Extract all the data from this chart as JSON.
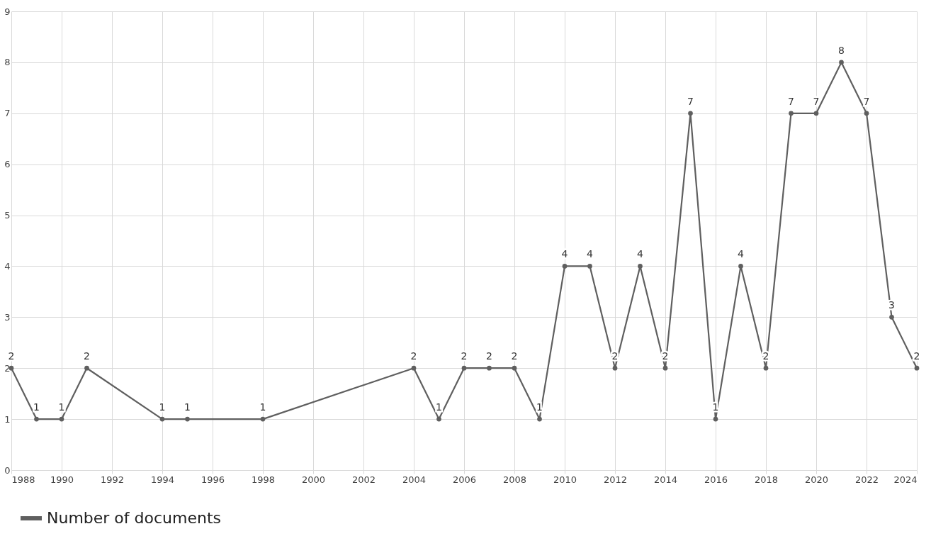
{
  "chart_data": {
    "type": "line",
    "x": [
      1988,
      1989,
      1990,
      1991,
      1994,
      1995,
      1998,
      2004,
      2005,
      2006,
      2007,
      2008,
      2009,
      2010,
      2011,
      2012,
      2013,
      2014,
      2015,
      2016,
      2017,
      2018,
      2019,
      2020,
      2021,
      2022,
      2023,
      2024
    ],
    "series": [
      {
        "name": "Number of documents",
        "color": "#5f5f5f",
        "values": [
          2,
          1,
          1,
          2,
          1,
          1,
          1,
          2,
          1,
          2,
          2,
          2,
          1,
          4,
          4,
          2,
          4,
          2,
          7,
          1,
          4,
          2,
          7,
          7,
          8,
          7,
          3,
          2
        ]
      }
    ],
    "xlim": [
      1988,
      2024
    ],
    "xticks": [
      1988,
      1990,
      1992,
      1994,
      1996,
      1998,
      2000,
      2002,
      2004,
      2006,
      2008,
      2010,
      2012,
      2014,
      2016,
      2018,
      2020,
      2022,
      2024
    ],
    "ylim": [
      0,
      9
    ],
    "yticks": [
      0,
      1,
      2,
      3,
      4,
      5,
      6,
      7,
      8,
      9
    ],
    "grid": true,
    "legend": "bottom",
    "marker": "circle",
    "line_style": "solid",
    "data_labels": true
  }
}
